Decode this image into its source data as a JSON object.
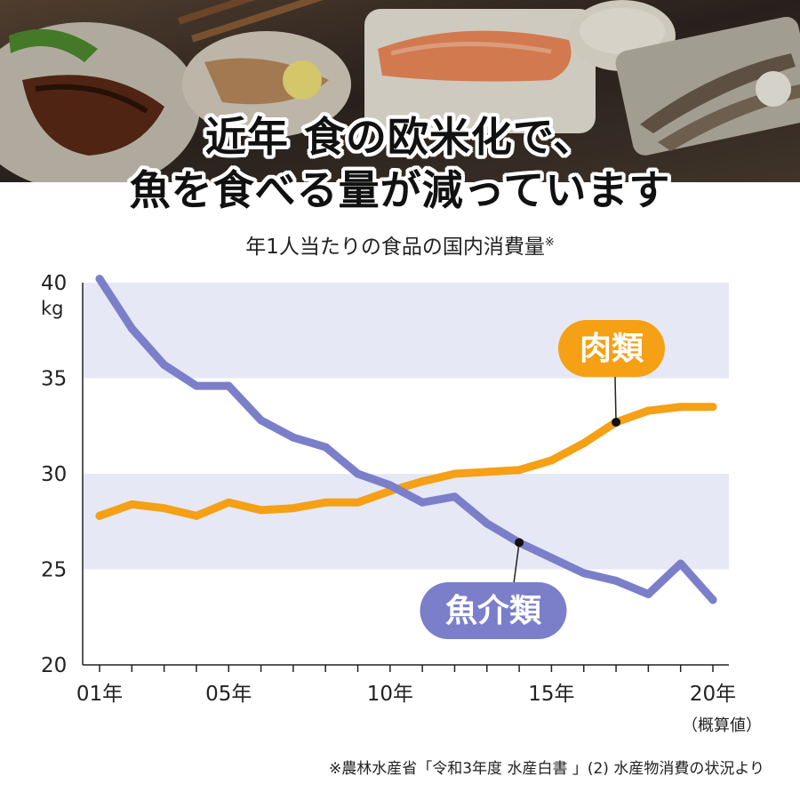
{
  "banner": {
    "headline_line1": "近年 食の欧米化で、",
    "headline_line2": "魚を食べる量が減っています"
  },
  "subtitle": "年1人当たりの食品の国内消費量",
  "subtitle_mark": "※",
  "footnote": "※農林水産省「令和3年度 水産白書 」(2) 水産物消費の状況より",
  "chart_data": {
    "type": "line",
    "x": [
      1,
      2,
      3,
      4,
      5,
      6,
      7,
      8,
      9,
      10,
      11,
      12,
      13,
      14,
      15,
      16,
      17,
      18,
      19,
      20
    ],
    "x_tick_values": [
      1,
      5,
      10,
      15,
      20
    ],
    "x_tick_labels": [
      "01年",
      "05年",
      "10年",
      "15年",
      "20年"
    ],
    "x_last_note": "（概算値）",
    "ylim": [
      20,
      40
    ],
    "y_ticks": [
      20,
      25,
      30,
      35,
      40
    ],
    "ylabel": "kg",
    "series": [
      {
        "name": "肉類",
        "color": "#f5a015",
        "values": [
          27.8,
          28.4,
          28.2,
          27.8,
          28.5,
          28.1,
          28.2,
          28.5,
          28.5,
          29.1,
          29.6,
          30.0,
          30.1,
          30.2,
          30.7,
          31.6,
          32.7,
          33.3,
          33.5,
          33.5
        ]
      },
      {
        "name": "魚介類",
        "color": "#7b7fca",
        "values": [
          40.2,
          37.6,
          35.7,
          34.6,
          34.6,
          32.8,
          31.9,
          31.4,
          30.0,
          29.4,
          28.5,
          28.8,
          27.4,
          26.4,
          25.6,
          24.8,
          24.4,
          23.7,
          25.3,
          23.4
        ]
      }
    ],
    "band_fill": "#e6e8f5"
  }
}
